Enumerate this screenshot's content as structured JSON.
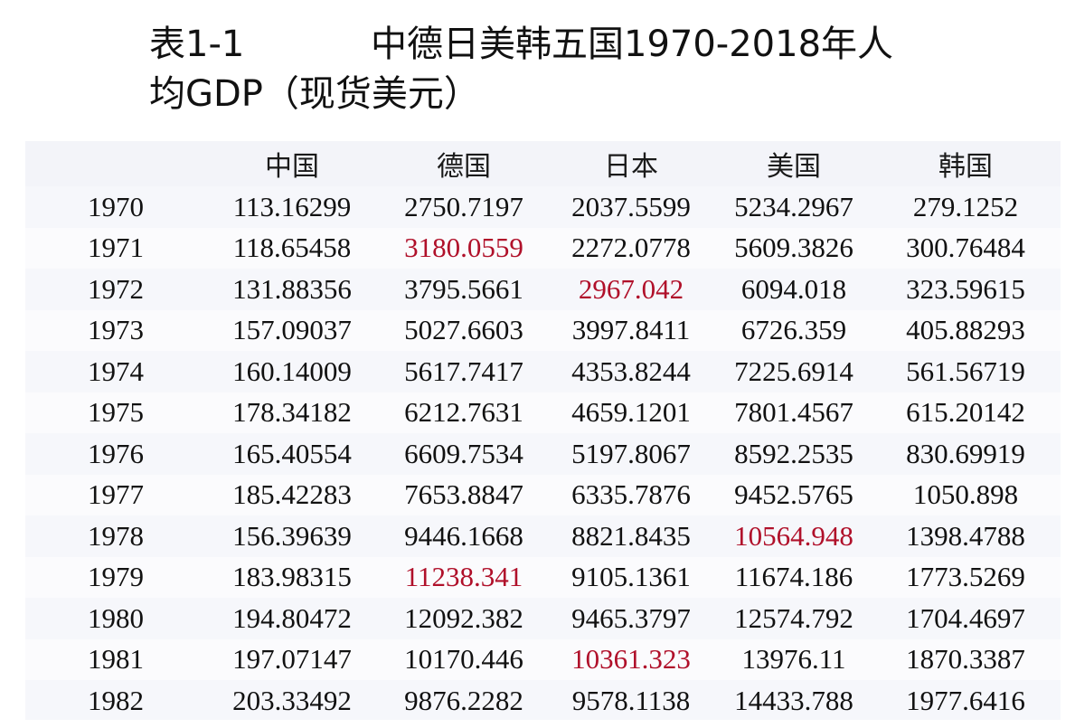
{
  "title": {
    "code": "表1-1",
    "line1": "中德日美韩五国1970-2018年人",
    "line2": "均GDP（现货美元）"
  },
  "table": {
    "headers": [
      "",
      "中国",
      "德国",
      "日本",
      "美国",
      "韩国"
    ],
    "rows": [
      {
        "year": "1970",
        "values": [
          "113.16299",
          "2750.7197",
          "2037.5599",
          "5234.2967",
          "279.1252"
        ],
        "highlight": []
      },
      {
        "year": "1971",
        "values": [
          "118.65458",
          "3180.0559",
          "2272.0778",
          "5609.3826",
          "300.76484"
        ],
        "highlight": [
          1
        ]
      },
      {
        "year": "1972",
        "values": [
          "131.88356",
          "3795.5661",
          "2967.042",
          "6094.018",
          "323.59615"
        ],
        "highlight": [
          2
        ]
      },
      {
        "year": "1973",
        "values": [
          "157.09037",
          "5027.6603",
          "3997.8411",
          "6726.359",
          "405.88293"
        ],
        "highlight": []
      },
      {
        "year": "1974",
        "values": [
          "160.14009",
          "5617.7417",
          "4353.8244",
          "7225.6914",
          "561.56719"
        ],
        "highlight": []
      },
      {
        "year": "1975",
        "values": [
          "178.34182",
          "6212.7631",
          "4659.1201",
          "7801.4567",
          "615.20142"
        ],
        "highlight": []
      },
      {
        "year": "1976",
        "values": [
          "165.40554",
          "6609.7534",
          "5197.8067",
          "8592.2535",
          "830.69919"
        ],
        "highlight": []
      },
      {
        "year": "1977",
        "values": [
          "185.42283",
          "7653.8847",
          "6335.7876",
          "9452.5765",
          "1050.898"
        ],
        "highlight": []
      },
      {
        "year": "1978",
        "values": [
          "156.39639",
          "9446.1668",
          "8821.8435",
          "10564.948",
          "1398.4788"
        ],
        "highlight": [
          3
        ]
      },
      {
        "year": "1979",
        "values": [
          "183.98315",
          "11238.341",
          "9105.1361",
          "11674.186",
          "1773.5269"
        ],
        "highlight": [
          1
        ]
      },
      {
        "year": "1980",
        "values": [
          "194.80472",
          "12092.382",
          "9465.3797",
          "12574.792",
          "1704.4697"
        ],
        "highlight": []
      },
      {
        "year": "1981",
        "values": [
          "197.07147",
          "10170.446",
          "10361.323",
          "13976.11",
          "1870.3387"
        ],
        "highlight": [
          2
        ]
      },
      {
        "year": "1982",
        "values": [
          "203.33492",
          "9876.2282",
          "9578.1138",
          "14433.788",
          "1977.6416"
        ],
        "highlight": []
      }
    ]
  },
  "colors": {
    "highlight": "#b0102a",
    "text": "#111111",
    "table_bg": "#f6f7fb"
  }
}
